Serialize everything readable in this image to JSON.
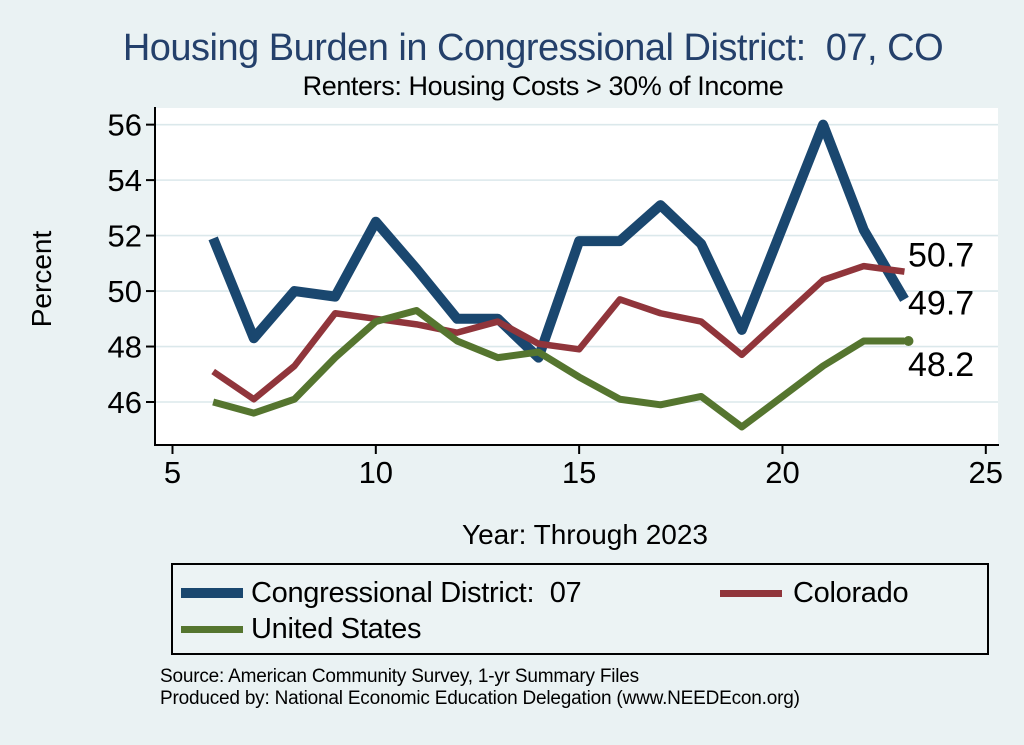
{
  "header": {
    "title": "Housing Burden in Congressional District:  07, CO",
    "subtitle": "Renters: Housing Costs > 30% of Income"
  },
  "chart_data": {
    "type": "line",
    "title": "Housing Burden in Congressional District:  07, CO",
    "subtitle": "Renters: Housing Costs > 30% of Income",
    "xlabel": "Year: Through 2023",
    "ylabel": "Percent",
    "x_ticks": [
      5,
      10,
      15,
      20,
      25
    ],
    "y_ticks": [
      46,
      48,
      50,
      52,
      54,
      56
    ],
    "xlim": [
      4.57,
      25.3
    ],
    "ylim": [
      44.45,
      56.6
    ],
    "grid": "horizontal",
    "background": "#eaf2f3",
    "plot_background": "#ffffff",
    "gridline_color": "#dbe8eb",
    "series": [
      {
        "name": "Congressional District:  07",
        "color": "#1a476f",
        "line_width": 10,
        "x": [
          6,
          7,
          8,
          9,
          10,
          11,
          12,
          13,
          14,
          15,
          16,
          17,
          18,
          19,
          21,
          22,
          23
        ],
        "y": [
          51.9,
          48.3,
          50.0,
          49.8,
          52.5,
          50.8,
          49.0,
          49.0,
          47.6,
          51.8,
          51.8,
          53.1,
          51.7,
          48.6,
          56.0,
          52.2,
          49.7
        ],
        "end_label": "49.7",
        "end_marker": false
      },
      {
        "name": "Colorado",
        "color": "#90353b",
        "line_width": 6.5,
        "x": [
          6,
          7,
          8,
          9,
          10,
          11,
          12,
          13,
          14,
          15,
          16,
          17,
          18,
          19,
          21,
          22,
          23
        ],
        "y": [
          47.1,
          46.1,
          47.3,
          49.2,
          49.0,
          48.8,
          48.5,
          48.9,
          48.1,
          47.9,
          49.7,
          49.2,
          48.9,
          47.7,
          50.4,
          50.9,
          50.7
        ],
        "end_label": "50.7",
        "end_marker": false
      },
      {
        "name": "United States",
        "color": "#55752f",
        "line_width": 7,
        "x": [
          6,
          7,
          8,
          9,
          10,
          11,
          12,
          13,
          14,
          15,
          16,
          17,
          18,
          19,
          21,
          22,
          23
        ],
        "y": [
          46.0,
          45.6,
          46.1,
          47.6,
          48.9,
          49.3,
          48.2,
          47.6,
          47.8,
          46.9,
          46.1,
          45.9,
          46.2,
          45.1,
          47.3,
          48.2,
          48.2
        ],
        "end_label": "48.2",
        "end_marker": true
      }
    ]
  },
  "footer": {
    "source": "Source: American Community Survey, 1-yr Summary Files",
    "produced_by": "Produced by: National Economic Education Delegation (www.NEEDEcon.org)"
  }
}
